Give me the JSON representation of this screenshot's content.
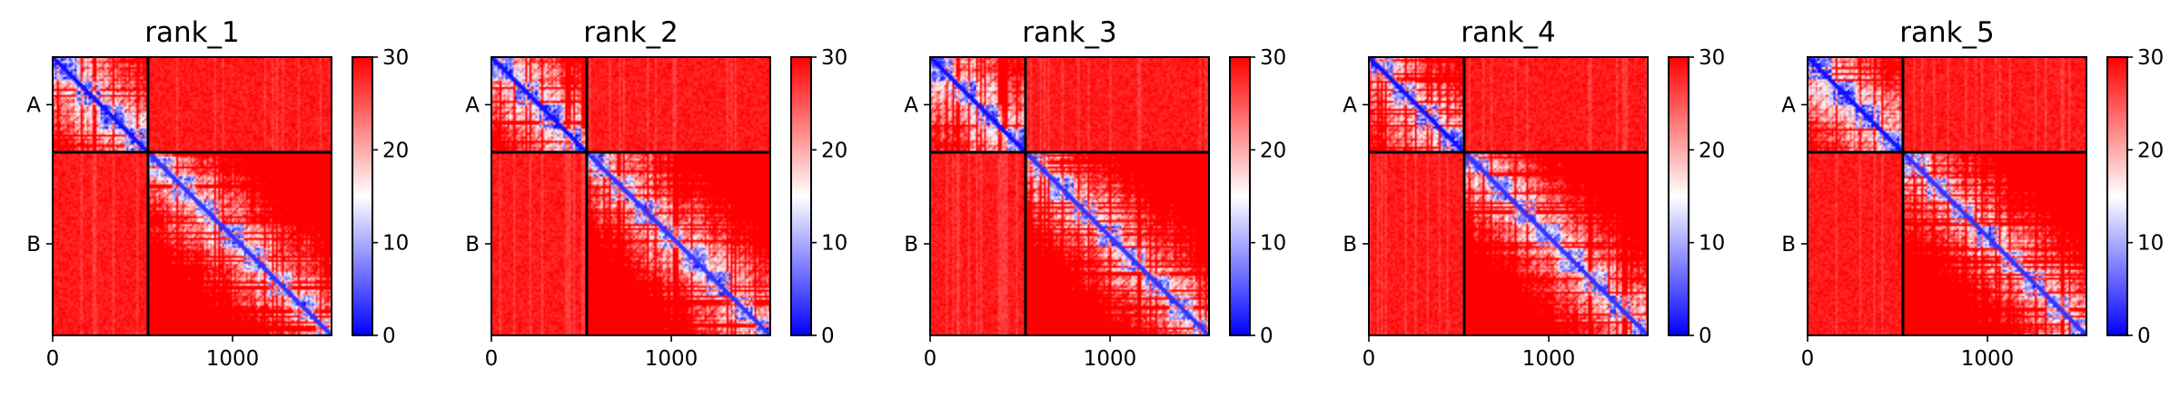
{
  "chart_data": [
    {
      "type": "heatmap",
      "title": "rank_1",
      "row_labels": [
        "A",
        "B"
      ],
      "xticks": [
        0,
        1000
      ],
      "xlim": [
        0,
        1550
      ],
      "chain_break": 530,
      "colorbar": {
        "ticks": [
          0,
          10,
          20,
          30
        ],
        "range": [
          0,
          30
        ],
        "colors": [
          "#0000ff",
          "#ffffff",
          "#ff0000"
        ]
      },
      "seed": 11
    },
    {
      "type": "heatmap",
      "title": "rank_2",
      "row_labels": [
        "A",
        "B"
      ],
      "xticks": [
        0,
        1000
      ],
      "xlim": [
        0,
        1550
      ],
      "chain_break": 530,
      "colorbar": {
        "ticks": [
          0,
          10,
          20,
          30
        ],
        "range": [
          0,
          30
        ],
        "colors": [
          "#0000ff",
          "#ffffff",
          "#ff0000"
        ]
      },
      "seed": 23
    },
    {
      "type": "heatmap",
      "title": "rank_3",
      "row_labels": [
        "A",
        "B"
      ],
      "xticks": [
        0,
        1000
      ],
      "xlim": [
        0,
        1550
      ],
      "chain_break": 530,
      "colorbar": {
        "ticks": [
          0,
          10,
          20,
          30
        ],
        "range": [
          0,
          30
        ],
        "colors": [
          "#0000ff",
          "#ffffff",
          "#ff0000"
        ]
      },
      "seed": 37
    },
    {
      "type": "heatmap",
      "title": "rank_4",
      "row_labels": [
        "A",
        "B"
      ],
      "xticks": [
        0,
        1000
      ],
      "xlim": [
        0,
        1550
      ],
      "chain_break": 530,
      "colorbar": {
        "ticks": [
          0,
          10,
          20,
          30
        ],
        "range": [
          0,
          30
        ],
        "colors": [
          "#0000ff",
          "#ffffff",
          "#ff0000"
        ]
      },
      "seed": 41
    },
    {
      "type": "heatmap",
      "title": "rank_5",
      "row_labels": [
        "A",
        "B"
      ],
      "xticks": [
        0,
        1000
      ],
      "xlim": [
        0,
        1550
      ],
      "chain_break": 530,
      "colorbar": {
        "ticks": [
          0,
          10,
          20,
          30
        ],
        "range": [
          0,
          30
        ],
        "colors": [
          "#0000ff",
          "#ffffff",
          "#ff0000"
        ]
      },
      "seed": 53
    }
  ]
}
